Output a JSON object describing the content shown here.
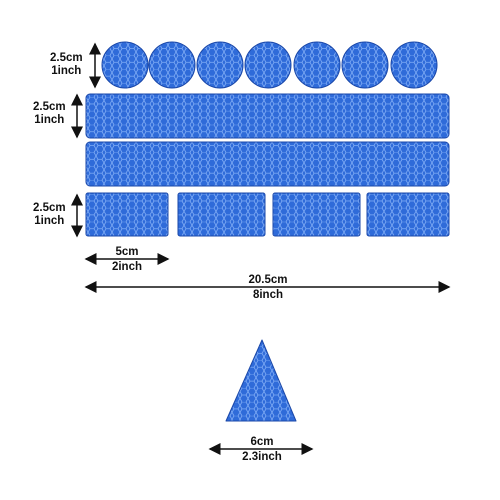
{
  "colors": {
    "sticker_fill": "#2f6bd9",
    "sticker_dark": "#1a47a8",
    "honeycomb_line": "#9cc2ff",
    "arrow": "#111111"
  },
  "icons": {
    "arrow": "double-headed-arrow-icon",
    "honeycomb": "honeycomb-texture-icon"
  },
  "stickers": {
    "circles": {
      "count": 7
    },
    "long_strips": {
      "count": 2
    },
    "small_rectangles": {
      "count": 4
    },
    "triangles": {
      "count": 1
    }
  },
  "dimensions": {
    "circle_height": {
      "metric": "2.5cm",
      "imperial": "1inch"
    },
    "strip_height": {
      "metric": "2.5cm",
      "imperial": "1inch"
    },
    "rect_height": {
      "metric": "2.5cm",
      "imperial": "1inch"
    },
    "rect_width": {
      "metric": "5cm",
      "imperial": "2inch"
    },
    "strip_width": {
      "metric": "20.5cm",
      "imperial": "8inch"
    },
    "triangle_width": {
      "metric": "6cm",
      "imperial": "2.3inch"
    }
  }
}
